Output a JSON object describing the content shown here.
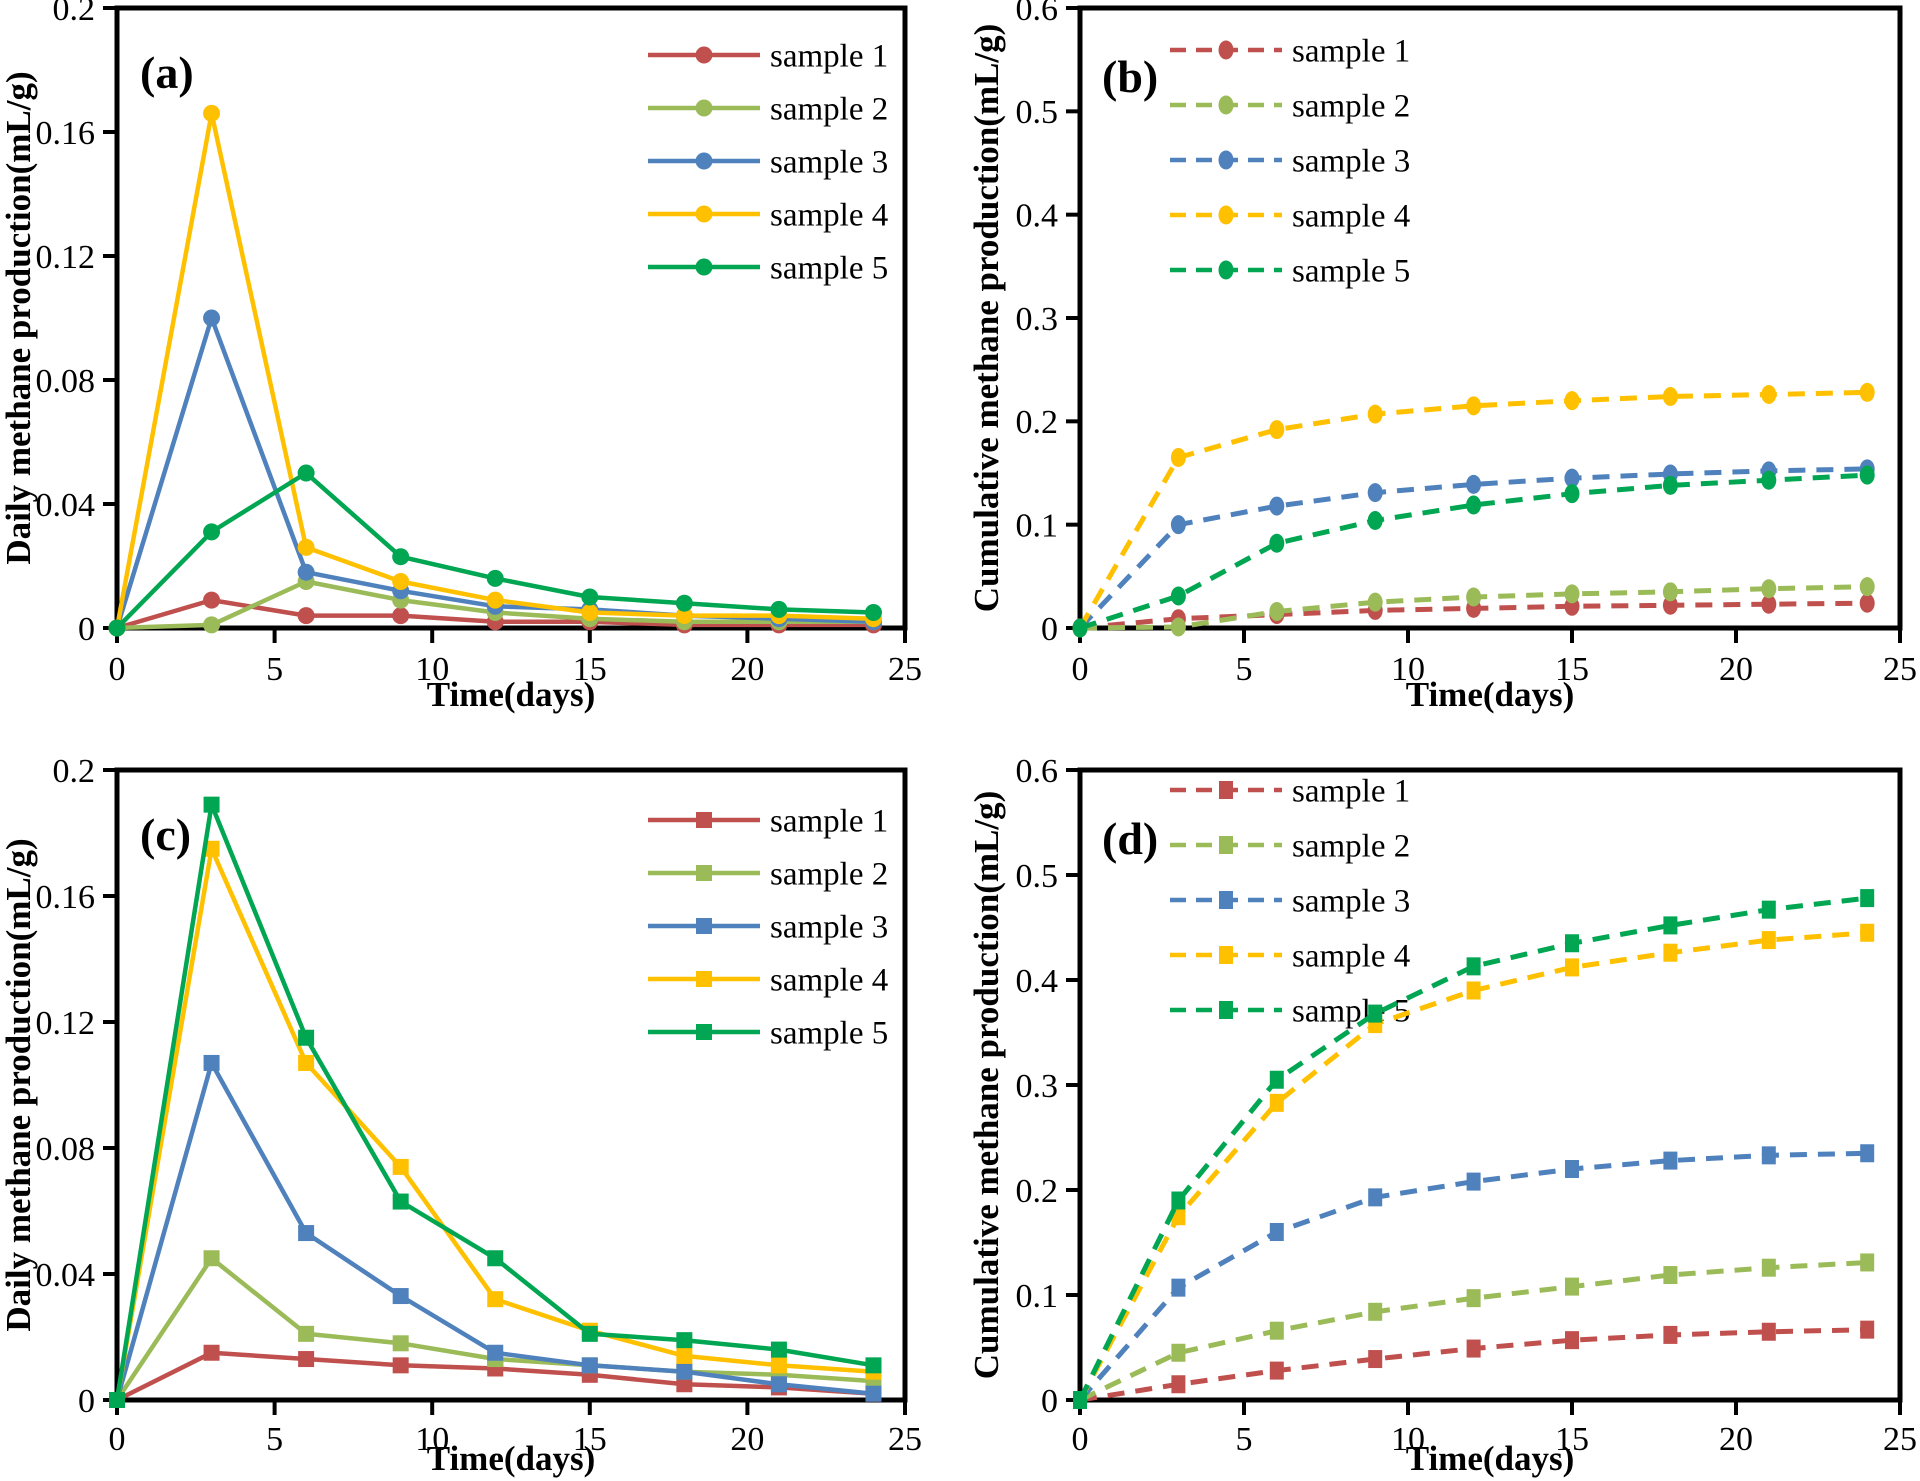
{
  "figure": {
    "background": "#FFFFFF",
    "frame_color": "#000000",
    "text_color": "#000000"
  },
  "samples": [
    {
      "name": "sample 1",
      "color": "#C0504D"
    },
    {
      "name": "sample 2",
      "color": "#9BBB59"
    },
    {
      "name": "sample 3",
      "color": "#4F81BD"
    },
    {
      "name": "sample 4",
      "color": "#FFC000"
    },
    {
      "name": "sample 5",
      "color": "#00A651"
    }
  ],
  "chart_data": [
    {
      "id": "a",
      "panel_label": "(a)",
      "type": "line",
      "line_style": "solid",
      "marker": "circle",
      "legend_position": "top-right",
      "title": "",
      "xlabel": "Time(days)",
      "ylabel": "Daily methane production(mL/g)",
      "x": [
        0,
        3,
        6,
        9,
        12,
        15,
        18,
        21,
        24
      ],
      "xlim": [
        0,
        25
      ],
      "xticks": [
        0,
        5,
        10,
        15,
        20,
        25
      ],
      "xtick_labels": [
        "0",
        "5",
        "10",
        "15",
        "20",
        "25"
      ],
      "ylim": [
        0,
        0.2
      ],
      "yticks": [
        0,
        0.04,
        0.08,
        0.12,
        0.16,
        0.2
      ],
      "ytick_labels": [
        "0",
        "0.04",
        "0.08",
        "0.12",
        "0.16",
        "0.2"
      ],
      "grid": false,
      "series": [
        {
          "name": "sample 1",
          "color": "#C0504D",
          "values": [
            0,
            0.009,
            0.004,
            0.004,
            0.002,
            0.002,
            0.001,
            0.001,
            0.001
          ]
        },
        {
          "name": "sample 2",
          "color": "#9BBB59",
          "values": [
            0,
            0.001,
            0.015,
            0.009,
            0.005,
            0.003,
            0.002,
            0.002,
            0.002
          ]
        },
        {
          "name": "sample 3",
          "color": "#4F81BD",
          "values": [
            0,
            0.1,
            0.018,
            0.012,
            0.007,
            0.006,
            0.004,
            0.003,
            0.002
          ]
        },
        {
          "name": "sample 4",
          "color": "#FFC000",
          "values": [
            0,
            0.166,
            0.026,
            0.015,
            0.009,
            0.005,
            0.004,
            0.004,
            0.003
          ]
        },
        {
          "name": "sample 5",
          "color": "#00A651",
          "values": [
            0,
            0.031,
            0.05,
            0.023,
            0.016,
            0.01,
            0.008,
            0.006,
            0.005
          ]
        }
      ]
    },
    {
      "id": "b",
      "panel_label": "(b)",
      "type": "line",
      "line_style": "dashed",
      "marker": "circle",
      "legend_position": "top-left",
      "title": "",
      "xlabel": "Time(days)",
      "ylabel": "Cumulative methane production(mL/g)",
      "x": [
        0,
        3,
        6,
        9,
        12,
        15,
        18,
        21,
        24
      ],
      "xlim": [
        0,
        25
      ],
      "xticks": [
        0,
        5,
        10,
        15,
        20,
        25
      ],
      "xtick_labels": [
        "0",
        "5",
        "10",
        "15",
        "20",
        "25"
      ],
      "ylim": [
        0,
        0.6
      ],
      "yticks": [
        0,
        0.1,
        0.2,
        0.3,
        0.4,
        0.5,
        0.6
      ],
      "ytick_labels": [
        "0",
        "0.1",
        "0.2",
        "0.3",
        "0.4",
        "0.5",
        "0.6"
      ],
      "grid": false,
      "series": [
        {
          "name": "sample 1",
          "color": "#C0504D",
          "values": [
            0,
            0.009,
            0.013,
            0.017,
            0.019,
            0.021,
            0.022,
            0.023,
            0.024
          ]
        },
        {
          "name": "sample 2",
          "color": "#9BBB59",
          "values": [
            0,
            0.001,
            0.016,
            0.025,
            0.03,
            0.033,
            0.035,
            0.038,
            0.04
          ]
        },
        {
          "name": "sample 3",
          "color": "#4F81BD",
          "values": [
            0,
            0.1,
            0.118,
            0.131,
            0.139,
            0.145,
            0.149,
            0.152,
            0.154
          ]
        },
        {
          "name": "sample 4",
          "color": "#FFC000",
          "values": [
            0,
            0.165,
            0.192,
            0.207,
            0.215,
            0.22,
            0.224,
            0.226,
            0.228
          ]
        },
        {
          "name": "sample 5",
          "color": "#00A651",
          "values": [
            0,
            0.031,
            0.082,
            0.104,
            0.119,
            0.13,
            0.138,
            0.143,
            0.148
          ]
        }
      ]
    },
    {
      "id": "c",
      "panel_label": "(c)",
      "type": "line",
      "line_style": "solid",
      "marker": "square",
      "legend_position": "top-right",
      "title": "",
      "xlabel": "Time(days)",
      "ylabel": "Daily methane production(mL/g)",
      "x": [
        0,
        3,
        6,
        9,
        12,
        15,
        18,
        21,
        24
      ],
      "xlim": [
        0,
        25
      ],
      "xticks": [
        0,
        5,
        10,
        15,
        20,
        25
      ],
      "xtick_labels": [
        "0",
        "5",
        "10",
        "15",
        "20",
        "25"
      ],
      "ylim": [
        0,
        0.2
      ],
      "yticks": [
        0,
        0.04,
        0.08,
        0.12,
        0.16,
        0.2
      ],
      "ytick_labels": [
        "0",
        "0.04",
        "0.08",
        "0.12",
        "0.16",
        "0.2"
      ],
      "grid": false,
      "series": [
        {
          "name": "sample 1",
          "color": "#C0504D",
          "values": [
            0,
            0.015,
            0.013,
            0.011,
            0.01,
            0.008,
            0.005,
            0.004,
            0.002
          ]
        },
        {
          "name": "sample 2",
          "color": "#9BBB59",
          "values": [
            0,
            0.045,
            0.021,
            0.018,
            0.013,
            0.011,
            0.009,
            0.008,
            0.006
          ]
        },
        {
          "name": "sample 3",
          "color": "#4F81BD",
          "values": [
            0,
            0.107,
            0.053,
            0.033,
            0.015,
            0.011,
            0.009,
            0.005,
            0.002
          ]
        },
        {
          "name": "sample 4",
          "color": "#FFC000",
          "values": [
            0,
            0.175,
            0.107,
            0.074,
            0.032,
            0.022,
            0.014,
            0.011,
            0.009
          ]
        },
        {
          "name": "sample 5",
          "color": "#00A651",
          "values": [
            0,
            0.189,
            0.115,
            0.063,
            0.045,
            0.021,
            0.019,
            0.016,
            0.011
          ]
        }
      ]
    },
    {
      "id": "d",
      "panel_label": "(d)",
      "type": "line",
      "line_style": "dashed",
      "marker": "square",
      "legend_position": "top-left",
      "title": "",
      "xlabel": "Time(days)",
      "ylabel": "Cumulative methane production(mL/g)",
      "x": [
        0,
        3,
        6,
        9,
        12,
        15,
        18,
        21,
        24
      ],
      "xlim": [
        0,
        25
      ],
      "xticks": [
        0,
        5,
        10,
        15,
        20,
        25
      ],
      "xtick_labels": [
        "0",
        "5",
        "10",
        "15",
        "20",
        "25"
      ],
      "ylim": [
        0,
        0.6
      ],
      "yticks": [
        0,
        0.1,
        0.2,
        0.3,
        0.4,
        0.5,
        0.6
      ],
      "ytick_labels": [
        "0",
        "0.1",
        "0.2",
        "0.3",
        "0.4",
        "0.5",
        "0.6"
      ],
      "grid": false,
      "series": [
        {
          "name": "sample 1",
          "color": "#C0504D",
          "values": [
            0,
            0.015,
            0.028,
            0.039,
            0.049,
            0.057,
            0.062,
            0.065,
            0.067
          ]
        },
        {
          "name": "sample 2",
          "color": "#9BBB59",
          "values": [
            0,
            0.045,
            0.066,
            0.084,
            0.097,
            0.108,
            0.119,
            0.126,
            0.131
          ]
        },
        {
          "name": "sample 3",
          "color": "#4F81BD",
          "values": [
            0,
            0.107,
            0.16,
            0.193,
            0.208,
            0.22,
            0.228,
            0.233,
            0.235
          ]
        },
        {
          "name": "sample 4",
          "color": "#FFC000",
          "values": [
            0,
            0.175,
            0.283,
            0.358,
            0.39,
            0.412,
            0.426,
            0.438,
            0.445
          ]
        },
        {
          "name": "sample 5",
          "color": "#00A651",
          "values": [
            0,
            0.19,
            0.305,
            0.368,
            0.413,
            0.435,
            0.452,
            0.467,
            0.478
          ]
        }
      ]
    }
  ]
}
